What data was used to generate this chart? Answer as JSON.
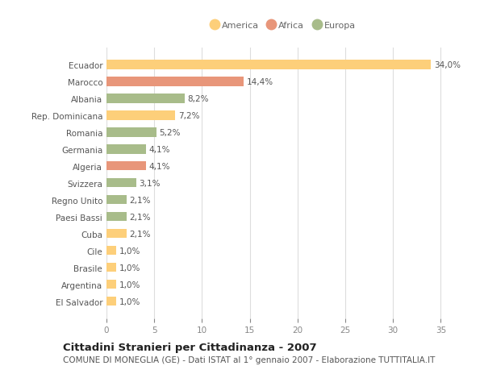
{
  "countries": [
    "Ecuador",
    "Marocco",
    "Albania",
    "Rep. Dominicana",
    "Romania",
    "Germania",
    "Algeria",
    "Svizzera",
    "Regno Unito",
    "Paesi Bassi",
    "Cuba",
    "Cile",
    "Brasile",
    "Argentina",
    "El Salvador"
  ],
  "values": [
    34.0,
    14.4,
    8.2,
    7.2,
    5.2,
    4.1,
    4.1,
    3.1,
    2.1,
    2.1,
    2.1,
    1.0,
    1.0,
    1.0,
    1.0
  ],
  "labels": [
    "34,0%",
    "14,4%",
    "8,2%",
    "7,2%",
    "5,2%",
    "4,1%",
    "4,1%",
    "3,1%",
    "2,1%",
    "2,1%",
    "2,1%",
    "1,0%",
    "1,0%",
    "1,0%",
    "1,0%"
  ],
  "colors": [
    "#FDCF7A",
    "#E8967A",
    "#A8BC8A",
    "#FDCF7A",
    "#A8BC8A",
    "#A8BC8A",
    "#E8967A",
    "#A8BC8A",
    "#A8BC8A",
    "#A8BC8A",
    "#FDCF7A",
    "#FDCF7A",
    "#FDCF7A",
    "#FDCF7A",
    "#FDCF7A"
  ],
  "legend_labels": [
    "America",
    "Africa",
    "Europa"
  ],
  "legend_colors": [
    "#FDCF7A",
    "#E8967A",
    "#A8BC8A"
  ],
  "title": "Cittadini Stranieri per Cittadinanza - 2007",
  "subtitle": "COMUNE DI MONEGLIA (GE) - Dati ISTAT al 1° gennaio 2007 - Elaborazione TUTTITALIA.IT",
  "xlim": [
    0,
    37
  ],
  "xticks": [
    0,
    5,
    10,
    15,
    20,
    25,
    30,
    35
  ],
  "bg_color": "#FFFFFF",
  "grid_color": "#DDDDDD",
  "bar_height": 0.55,
  "label_fontsize": 7.5,
  "tick_fontsize": 7.5,
  "title_fontsize": 9.5,
  "subtitle_fontsize": 7.5
}
